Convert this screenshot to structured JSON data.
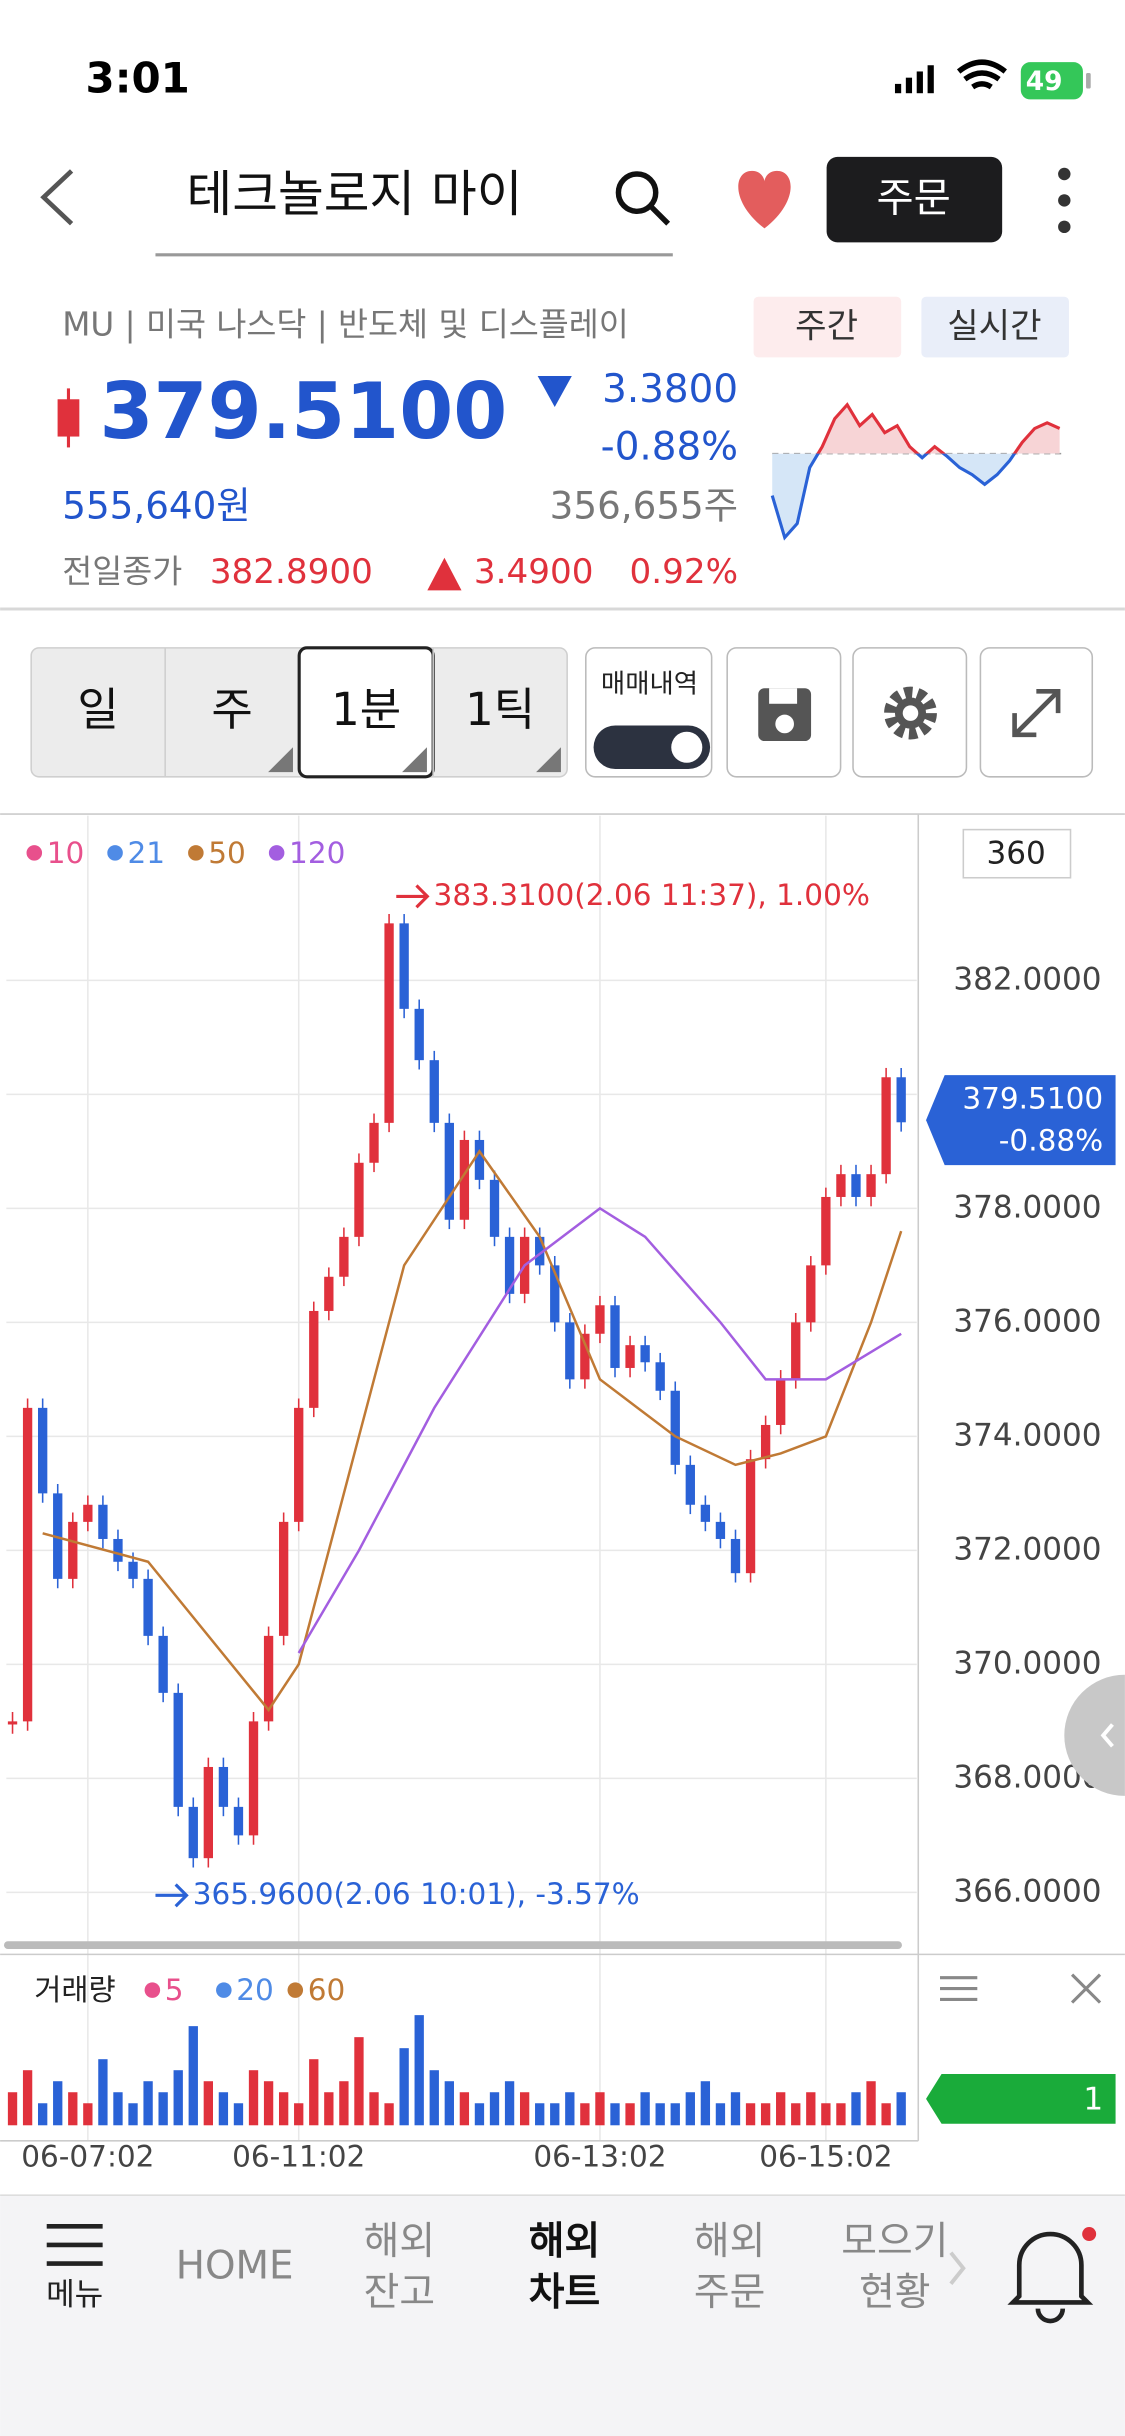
{
  "status_bar": {
    "time": "3:01",
    "battery": "49"
  },
  "header": {
    "search_text": "테크놀로지   마이",
    "order_button": "주문"
  },
  "quote": {
    "symbol_info": "MU | 미국 나스닥 | 반도체 및 디스플레이",
    "tabs": [
      "주간",
      "실시간"
    ],
    "price": "379.5100",
    "change": "3.3800",
    "change_pct": "-0.88%",
    "krw_price": "555,640원",
    "volume": "356,655주",
    "prev_close_label": "전일종가",
    "prev_close": "382.8900",
    "prev_change": "3.4900",
    "prev_change_pct": "0.92%"
  },
  "sparkline": {
    "values": [
      -3,
      -6,
      -5,
      -1,
      0.5,
      2.5,
      3.5,
      2,
      2.8,
      1.5,
      2,
      0.5,
      -0.3,
      0.5,
      -0.2,
      -1,
      -1.5,
      -2.2,
      -1.5,
      -0.5,
      0.8,
      1.8,
      2.2,
      1.8
    ]
  },
  "toolbar": {
    "periods": [
      "일",
      "주",
      "1분",
      "1틱"
    ],
    "selected": 2,
    "trade_history": "매매내역"
  },
  "chart_data": {
    "type": "candlestick",
    "count_box": "360",
    "up_color": "#e0313c",
    "down_color": "#2a62d6",
    "categories": [
      null,
      null,
      null,
      null,
      null,
      "06-07:02",
      null,
      null,
      null,
      null,
      null,
      null,
      null,
      null,
      null,
      null,
      null,
      null,
      null,
      "06-11:02",
      null,
      null,
      null,
      null,
      null,
      null,
      null,
      null,
      null,
      null,
      null,
      null,
      null,
      null,
      null,
      null,
      null,
      null,
      null,
      "06-13:02",
      null,
      null,
      null,
      null,
      null,
      null,
      null,
      null,
      null,
      null,
      null,
      null,
      null,
      null,
      "06-15:02",
      null,
      null,
      null,
      null,
      null
    ],
    "values": [
      369.0,
      374.5,
      373.0,
      371.5,
      372.5,
      372.8,
      372.2,
      371.8,
      371.5,
      370.5,
      369.5,
      367.5,
      366.6,
      368.2,
      367.5,
      367.0,
      369.0,
      370.5,
      372.5,
      374.5,
      376.2,
      376.8,
      377.5,
      378.8,
      379.5,
      383.0,
      381.5,
      380.6,
      379.5,
      377.8,
      379.2,
      378.5,
      377.5,
      376.5,
      377.5,
      377.0,
      376.0,
      375.0,
      375.8,
      376.3,
      375.2,
      375.6,
      375.3,
      374.8,
      373.5,
      372.8,
      372.5,
      372.2,
      371.6,
      373.6,
      374.2,
      375.0,
      376.0,
      377.0,
      378.2,
      378.6,
      378.2,
      378.6,
      380.3,
      379.51
    ],
    "series": [
      {
        "name": "10",
        "color": "#e8508c"
      },
      {
        "name": "21",
        "color": "#4f8be6"
      },
      {
        "name": "50",
        "color": "#c07a35",
        "x": [
          2,
          9,
          17,
          19,
          23,
          26,
          31,
          35,
          39,
          44,
          48,
          51,
          54,
          57,
          59
        ],
        "values": [
          372.3,
          371.8,
          369.2,
          370.0,
          374.0,
          377.0,
          379.0,
          377.5,
          375.0,
          374.0,
          373.5,
          373.7,
          374.0,
          376.0,
          377.6
        ]
      },
      {
        "name": "120",
        "color": "#a35ee0",
        "x": [
          19,
          23,
          28,
          34,
          39,
          42,
          47,
          50,
          54,
          59
        ],
        "values": [
          370.2,
          372.0,
          374.5,
          377.0,
          378.0,
          377.5,
          376.0,
          375.0,
          375.0,
          375.8
        ]
      }
    ],
    "ylim": [
      365.13,
      384.89
    ],
    "yticks": [
      {
        "value": 366,
        "label": "366.0000"
      },
      {
        "value": 368,
        "label": "368.0000"
      },
      {
        "value": 370,
        "label": "370.0000"
      },
      {
        "value": 372,
        "label": "372.0000"
      },
      {
        "value": 374,
        "label": "374.0000"
      },
      {
        "value": 376,
        "label": "376.0000"
      },
      {
        "value": 378,
        "label": "378.0000"
      },
      {
        "value": 380,
        "label": "379.5100"
      },
      {
        "value": 382,
        "label": "382.0000"
      }
    ],
    "grid": true,
    "annotations": [
      {
        "text": "383.3100(2.06 11:37), 1.00%"
      },
      {
        "text": "365.9600(2.06 10:01), -3.57%"
      }
    ],
    "current_label": {
      "price": "379.5100",
      "change": "-0.88%"
    },
    "volume": {
      "title": "거래량",
      "series": [
        {
          "name": "5",
          "color": "#e8508c"
        },
        {
          "name": "20",
          "color": "#4f8be6"
        },
        {
          "name": "60",
          "color": "#c07a35"
        }
      ],
      "ylim": [
        0,
        11
      ],
      "values": [
        3,
        5,
        2,
        4,
        3,
        2,
        6,
        3,
        2,
        4,
        3,
        5,
        9,
        4,
        3,
        2,
        5,
        4,
        3,
        2,
        6,
        3,
        4,
        8,
        3,
        2,
        7,
        10,
        5,
        4,
        3,
        2,
        3,
        4,
        3,
        2,
        2,
        3,
        2,
        3,
        2,
        2,
        3,
        2,
        2,
        3,
        4,
        2,
        3,
        2,
        2,
        3,
        2,
        3,
        2,
        2,
        3,
        4,
        2,
        3
      ],
      "badge": "1"
    }
  },
  "nav": {
    "menu": "메뉴",
    "home": "HOME",
    "items": [
      [
        "해외",
        "잔고"
      ],
      [
        "해외",
        "차트"
      ],
      [
        "해외",
        "주문"
      ],
      [
        "모으기",
        "현황"
      ]
    ]
  }
}
